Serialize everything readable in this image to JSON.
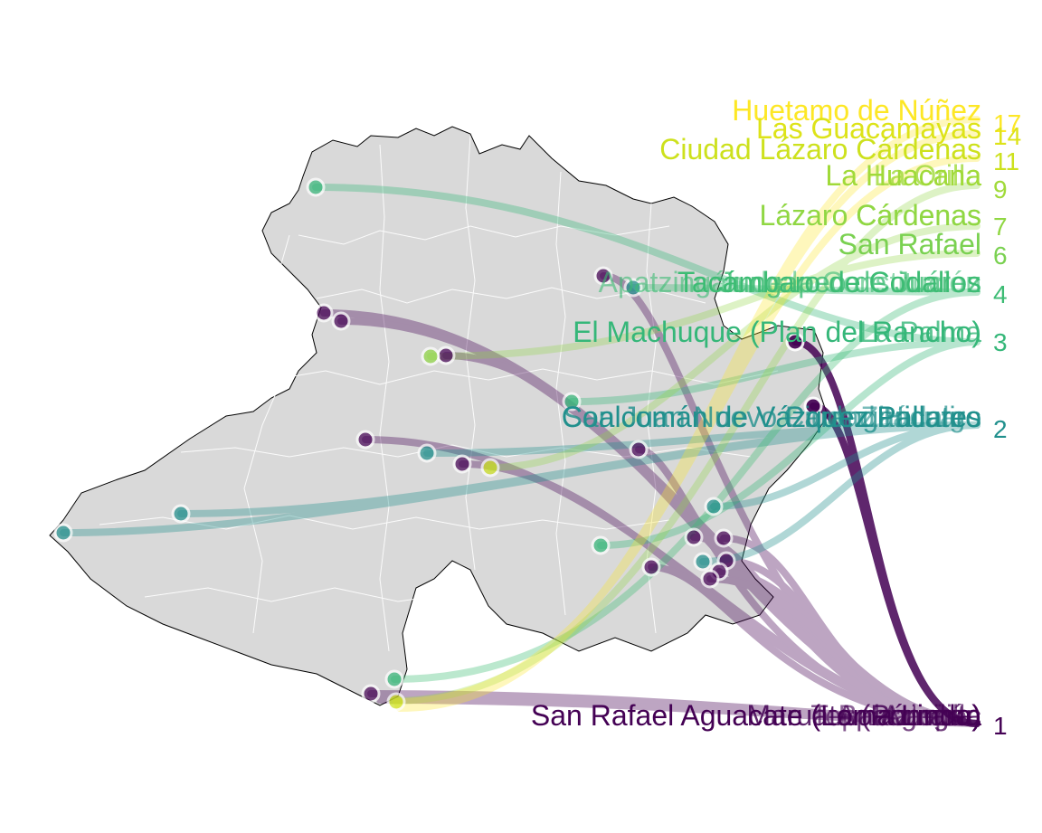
{
  "palette": {
    "r1": "#440154",
    "r2": "#21908d",
    "r3": "#35b779",
    "r4": "#3dbc74",
    "r6": "#7ad151",
    "r7": "#90d743",
    "r9": "#a0da39",
    "r11": "#cde11d",
    "r14": "#dde318",
    "r17": "#fde725",
    "land": "#d9d9d9",
    "border": "#000000",
    "inner": "#ffffff"
  },
  "icons": {
    "point": "circle-marker-icon"
  },
  "ranks": [
    {
      "id": "r17",
      "rank": "17",
      "label": "Huetamo de Núñez"
    },
    {
      "id": "r14",
      "rank": "14",
      "label": "Las Guacamayas"
    },
    {
      "id": "r11",
      "rank": "11",
      "label": "Ciudad Lázaro Cárdenas"
    },
    {
      "id": "r9a",
      "rank": "9",
      "label": "La Huacana"
    },
    {
      "id": "r9b",
      "rank": "",
      "label": "La Orilla"
    },
    {
      "id": "r7a",
      "rank": "7",
      "label": "Lázaro Cárdenas"
    },
    {
      "id": "r7b",
      "rank": "",
      "label": "Cárdenas"
    },
    {
      "id": "r6",
      "rank": "6",
      "label": "San Rafael"
    },
    {
      "id": "r4a",
      "rank": "4",
      "label": "Tacámbaro de Codallos"
    },
    {
      "id": "r4b",
      "rank": "",
      "label": "Jungapeo de Juárez"
    },
    {
      "id": "r4c",
      "rank": "",
      "label": "Apatzingán de la Constitución"
    },
    {
      "id": "r3a",
      "rank": "3",
      "label": "El Machuque (Plan del Rancho)"
    },
    {
      "id": "r3b",
      "rank": "",
      "label": "La Palma"
    },
    {
      "id": "r2a",
      "rank": "2",
      "label": "Coalcomán de Vázquez Pallares"
    },
    {
      "id": "r2b",
      "rank": "",
      "label": "San Juan Nuevo Parangaricutiro"
    },
    {
      "id": "r2c",
      "rank": "",
      "label": "Ciudad Hidalgo"
    },
    {
      "id": "r2d",
      "rank": "",
      "label": "Zitácuaro"
    },
    {
      "id": "r1a",
      "rank": "1",
      "label": "San Rafael Aguacate (Loma Linda)"
    },
    {
      "id": "r1b",
      "rank": "",
      "label": "Maruata (Pómaro)"
    },
    {
      "id": "r1c",
      "rank": "",
      "label": "Apatzingán"
    },
    {
      "id": "r1d",
      "rank": "",
      "label": "Aguililla"
    },
    {
      "id": "r1e",
      "rank": "",
      "label": "Tepalcatepec"
    },
    {
      "id": "r1f",
      "rank": "",
      "label": "Buenavista"
    }
  ]
}
